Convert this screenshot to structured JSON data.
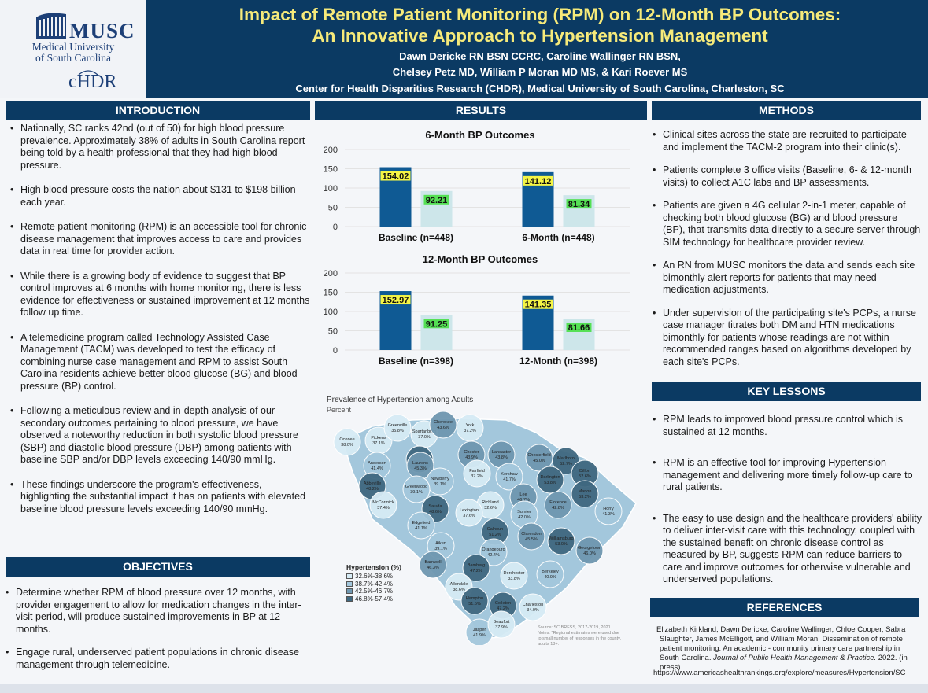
{
  "header": {
    "logo": {
      "name": "MUSC",
      "line1": "Medical University",
      "line2": "of South Carolina",
      "center": "cHDR"
    },
    "title_line1": "Impact of Remote Patient Monitoring (RPM) on 12-Month BP Outcomes:",
    "title_line2": "An Innovative Approach to Hypertension Management",
    "authors_line1": "Dawn Dericke RN BSN CCRC, Caroline Wallinger RN BSN,",
    "authors_line2": "Chelsey Petz MD, William P Moran MD MS, & Kari Roever MS",
    "affiliation": "Center for Health Disparities Research (CHDR), Medical University of South Carolina, Charleston, SC"
  },
  "introduction": {
    "heading": "INTRODUCTION",
    "items": [
      "Nationally, SC ranks 42nd (out of 50)  for high blood pressure prevalence. Approximately 38% of adults in South Carolina report being told by a health professional that they had high blood pressure.",
      "High blood pressure costs the nation about $131 to $198 billion each year.",
      "Remote patient monitoring (RPM) is an accessible tool for chronic disease management that improves access to care and provides data in real time for provider action.",
      "While there is a growing body of evidence to suggest that BP control improves at 6 months with home monitoring, there is less evidence for effectiveness or sustained improvement at 12 months follow up time.",
      "A telemedicine program called Technology Assisted Case Management (TACM) was developed to test the efficacy of combining nurse case management and RPM to assist South Carolina residents achieve better blood glucose (BG) and blood pressure (BP) control.",
      "Following a meticulous review and in-depth analysis of our secondary outcomes pertaining to blood pressure, we have observed a noteworthy reduction in both systolic blood pressure (SBP) and diastolic blood pressure (DBP) among patients with baseline SBP and/or DBP levels exceeding 140/90 mmHg.",
      "These findings underscore the program's effectiveness, highlighting the substantial impact it has on patients with elevated baseline blood pressure levels exceeding 140/90 mmHg."
    ]
  },
  "objectives": {
    "heading": "OBJECTIVES",
    "items": [
      "Determine whether RPM of blood pressure over 12 months, with provider engagement to allow for medication changes in the inter-visit period, will produce sustained improvements in BP at 12 months.",
      "Engage rural, underserved patient populations in chronic disease management through telemedicine."
    ]
  },
  "results": {
    "heading": "RESULTS"
  },
  "chart_data": [
    {
      "type": "bar",
      "title": "6-Month BP Outcomes",
      "categories": [
        "Baseline (n=448)",
        "6-Month (n=448)"
      ],
      "series": [
        {
          "values": [
            154.02,
            141.12
          ]
        },
        {
          "values": [
            92.21,
            81.34
          ]
        }
      ],
      "ylim": [
        0,
        200
      ],
      "yticks": [
        0,
        50,
        100,
        150,
        200
      ],
      "colors": [
        "#0f5a94",
        "#cde6ea"
      ],
      "label_colors": [
        "#f5f545",
        "#55e055"
      ]
    },
    {
      "type": "bar",
      "title": "12-Month BP Outcomes",
      "categories": [
        "Baseline (n=398)",
        "12-Month (n=398)"
      ],
      "series": [
        {
          "values": [
            152.97,
            141.35
          ]
        },
        {
          "values": [
            91.25,
            81.66
          ]
        }
      ],
      "ylim": [
        0,
        200
      ],
      "yticks": [
        0,
        50,
        100,
        150,
        200
      ],
      "colors": [
        "#0f5a94",
        "#cde6ea"
      ],
      "label_colors": [
        "#f5f545",
        "#55e055"
      ]
    }
  ],
  "map": {
    "title": "Prevalence of Hypertension among Adults",
    "subtitle": "Percent",
    "legend_title": "Hypertension (%)",
    "legend": [
      {
        "label": "32.6%-38.6%",
        "color": "#d6ebf5"
      },
      {
        "label": "38.7%-42.4%",
        "color": "#a3c7dc"
      },
      {
        "label": "42.5%-46.7%",
        "color": "#6f97b0"
      },
      {
        "label": "46.8%-57.4%",
        "color": "#3f6880"
      }
    ],
    "source": "Source: SC BRFSS, 2017-2019, 2021. Notes: *Regional estimates were used due to small number of responses in the county, adults 18+.",
    "counties": [
      {
        "name": "Oconee",
        "value": "38.0%"
      },
      {
        "name": "Pickens",
        "value": "37.1%"
      },
      {
        "name": "Greenville",
        "value": "35.8%"
      },
      {
        "name": "Spartanburg",
        "value": "37.0%"
      },
      {
        "name": "Cherokee",
        "value": "43.6%"
      },
      {
        "name": "York",
        "value": "37.2%"
      },
      {
        "name": "Anderson",
        "value": "41.4%"
      },
      {
        "name": "Union",
        "value": "51.3%"
      },
      {
        "name": "Chester",
        "value": "43.9%"
      },
      {
        "name": "Lancaster",
        "value": "43.8%"
      },
      {
        "name": "Chesterfield",
        "value": "45.0%"
      },
      {
        "name": "Marlboro",
        "value": "52.7%"
      },
      {
        "name": "Laurens",
        "value": "45.3%"
      },
      {
        "name": "Fairfield",
        "value": "37.2%"
      },
      {
        "name": "Kershaw",
        "value": "41.7%"
      },
      {
        "name": "Darlington",
        "value": "53.8%"
      },
      {
        "name": "Dillon",
        "value": "52.6%"
      },
      {
        "name": "Abbeville",
        "value": "48.2%"
      },
      {
        "name": "Newberry",
        "value": "39.1%"
      },
      {
        "name": "Greenwood",
        "value": "39.1%"
      },
      {
        "name": "Lee",
        "value": "46.7%"
      },
      {
        "name": "Marion",
        "value": "53.2%"
      },
      {
        "name": "McCormick",
        "value": "37.4%"
      },
      {
        "name": "Saluda",
        "value": "48.6%"
      },
      {
        "name": "Richland",
        "value": "32.6%"
      },
      {
        "name": "Florence",
        "value": "42.8%"
      },
      {
        "name": "Horry",
        "value": "41.3%"
      },
      {
        "name": "Lexington",
        "value": "37.6%"
      },
      {
        "name": "Sumter",
        "value": "42.0%"
      },
      {
        "name": "Edgefield",
        "value": "41.1%"
      },
      {
        "name": "Calhoun",
        "value": "51.2%"
      },
      {
        "name": "Clarendon",
        "value": "45.5%"
      },
      {
        "name": "Williamsburg",
        "value": "53.0%"
      },
      {
        "name": "Aiken",
        "value": "39.1%"
      },
      {
        "name": "Orangeburg",
        "value": "42.4%"
      },
      {
        "name": "Georgetown",
        "value": "46.0%"
      },
      {
        "name": "Barnwell",
        "value": "46.3%"
      },
      {
        "name": "Bamberg",
        "value": "47.2%"
      },
      {
        "name": "Dorchester",
        "value": "33.8%"
      },
      {
        "name": "Berkeley",
        "value": "40.9%"
      },
      {
        "name": "Allendale",
        "value": "38.6%"
      },
      {
        "name": "Hampton",
        "value": "51.5%"
      },
      {
        "name": "Colleton",
        "value": "47.2%"
      },
      {
        "name": "Charleston",
        "value": "34.0%"
      },
      {
        "name": "Jasper",
        "value": "41.9%"
      },
      {
        "name": "Beaufort",
        "value": "37.9%"
      }
    ]
  },
  "methods": {
    "heading": "METHODS",
    "items": [
      "Clinical sites across the state are recruited to participate and implement the TACM-2 program into their clinic(s).",
      "Patients complete 3 office visits (Baseline, 6- & 12-month visits) to collect A1C labs and BP assessments.",
      "Patients are given a 4G cellular 2-in-1 meter, capable of checking both blood glucose (BG) and blood pressure (BP), that transmits data directly to a secure server through SIM technology for healthcare provider review.",
      "An RN from MUSC monitors the data and sends each site bimonthly  alert reports for patients that may need medication adjustments.",
      "Under supervision of the participating site's PCPs, a nurse case manager titrates both DM and HTN medications bimonthly for patients whose readings are not within recommended ranges based on algorithms developed by each site's PCPs."
    ]
  },
  "key_lessons": {
    "heading": "KEY LESSONS",
    "items": [
      "RPM leads to improved blood pressure control which is sustained at 12 months.",
      "RPM is an effective tool for improving Hypertension management and delivering more timely follow-up care to rural patients.",
      "The easy to use design and the healthcare providers' ability to deliver inter-visit care with this technology, coupled with the sustained benefit on chronic disease control as measured by BP, suggests RPM can reduce barriers to care and improve outcomes for otherwise vulnerable and underserved populations."
    ]
  },
  "references": {
    "heading": "REFERENCES",
    "citation_authors": "Elizabeth Kirkland, Dawn Dericke, Caroline Wallinger, Chloe Cooper, Sabra Slaughter, James McElligott, and William Moran. Dissemination of remote patient monitoring: An academic - community primary care partnership in South Carolina. ",
    "citation_journal": "Journal of Public Health Management & Practice.",
    "citation_tail": " 2022. (in press)",
    "link": "https://www.americashealthrankings.org/explore/measures/Hypertension/SC"
  }
}
